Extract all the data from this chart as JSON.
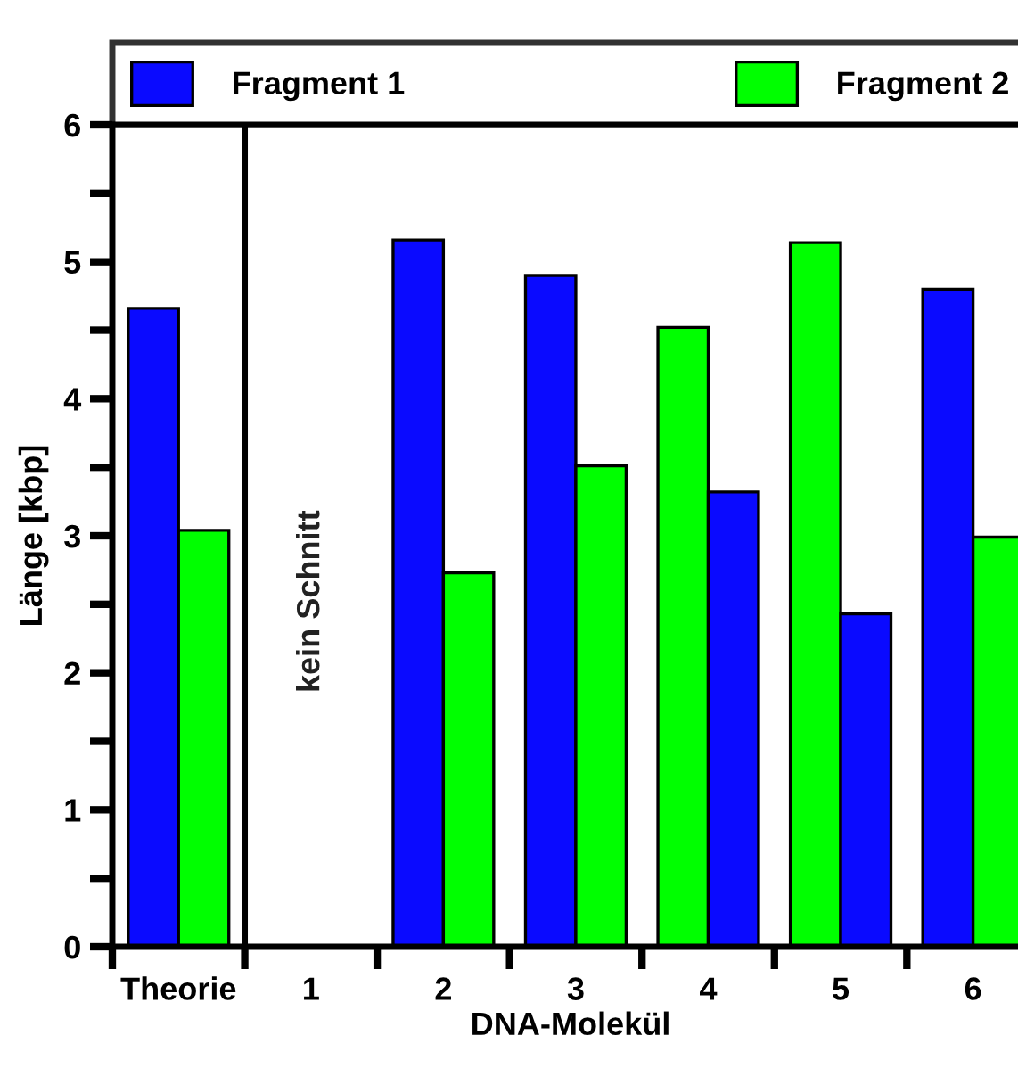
{
  "chart_data": {
    "type": "bar",
    "xlabel": "DNA-Molekül",
    "ylabel": "Länge [kbp]",
    "categories": [
      "Theorie",
      "1",
      "2",
      "3",
      "4",
      "5",
      "6"
    ],
    "series": [
      {
        "name": "Fragment 1",
        "color": "#0a0aff",
        "values": [
          4.66,
          null,
          5.16,
          4.9,
          3.32,
          2.43,
          4.8
        ]
      },
      {
        "name": "Fragment 2",
        "color": "#00ff00",
        "values": [
          3.04,
          null,
          2.73,
          3.51,
          4.52,
          5.14,
          2.99
        ]
      }
    ],
    "ylim": [
      0,
      6
    ],
    "yticks": [
      0,
      {
        "value": 0.5,
        "label": null
      },
      1,
      {
        "value": 1.5,
        "label": null
      },
      2,
      {
        "value": 2.5,
        "label": null
      },
      3,
      {
        "value": 3.5,
        "label": null
      },
      4,
      {
        "value": 4.5,
        "label": null
      },
      5,
      {
        "value": 5.5,
        "label": null
      },
      6
    ],
    "annotations": [
      "kein Schnitt"
    ],
    "legend": "top",
    "grid": false
  }
}
